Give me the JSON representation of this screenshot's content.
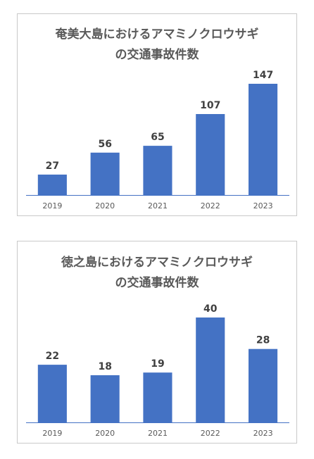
{
  "colors": {
    "bar": "#4472c4",
    "axis": "#4472c4",
    "title": "#595959",
    "data_label": "#404040",
    "tick_label": "#595959",
    "panel_border": "#c9c9c9"
  },
  "chart_data": [
    {
      "type": "bar",
      "title": "奄美大島におけるアマミノクロウサギの交通事故件数",
      "title_lines": [
        "奄美大島におけるアマミノクロウサギ",
        "の交通事故件数"
      ],
      "categories": [
        "2019",
        "2020",
        "2021",
        "2022",
        "2023"
      ],
      "values": [
        27,
        56,
        65,
        107,
        147
      ],
      "data_labels": [
        "27",
        "56",
        "65",
        "107",
        "147"
      ],
      "xlabel": "",
      "ylabel": "",
      "ylim": [
        0,
        160
      ],
      "grid": false,
      "legend": "none"
    },
    {
      "type": "bar",
      "title": "徳之島におけるアマミノクロウサギの交通事故件数",
      "title_lines": [
        "徳之島におけるアマミノクロウサギ",
        "の交通事故件数"
      ],
      "categories": [
        "2019",
        "2020",
        "2021",
        "2022",
        "2023"
      ],
      "values": [
        22,
        18,
        19,
        40,
        28
      ],
      "data_labels": [
        "22",
        "18",
        "19",
        "40",
        "28"
      ],
      "xlabel": "",
      "ylabel": "",
      "ylim": [
        0,
        43.5
      ],
      "grid": false,
      "legend": "none"
    }
  ]
}
